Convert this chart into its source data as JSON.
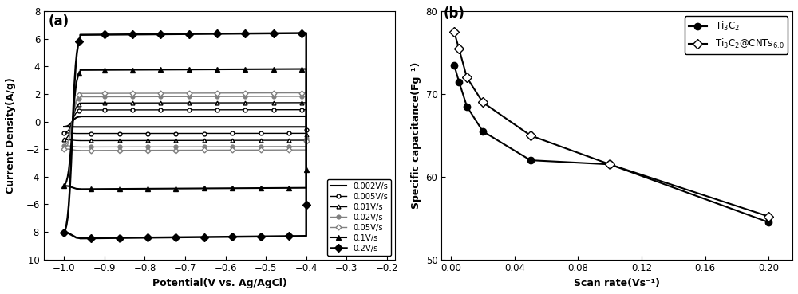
{
  "panel_a": {
    "xlabel": "Potential(V vs. Ag/AgCl)",
    "ylabel": "Current Density(A/g)",
    "xlim": [
      -1.05,
      -0.18
    ],
    "ylim": [
      -10,
      8
    ],
    "yticks": [
      -10,
      -8,
      -6,
      -4,
      -2,
      0,
      2,
      4,
      6,
      8
    ],
    "xticks": [
      -1.0,
      -0.9,
      -0.8,
      -0.7,
      -0.6,
      -0.5,
      -0.4,
      -0.3,
      -0.2
    ],
    "label": "(a)",
    "cv_curves": [
      {
        "upper": 0.38,
        "lower": -0.38,
        "color": "black",
        "marker": "None",
        "ms": 0,
        "mfc": "black",
        "lw": 1.5,
        "label": "0.002V/s"
      },
      {
        "upper": 0.85,
        "lower": -0.85,
        "color": "black",
        "marker": "o",
        "ms": 3.5,
        "mfc": "white",
        "lw": 1.0,
        "label": "0.005V/s"
      },
      {
        "upper": 1.35,
        "lower": -1.35,
        "color": "black",
        "marker": "^",
        "ms": 3.5,
        "mfc": "white",
        "lw": 1.0,
        "label": "0.01V/s"
      },
      {
        "upper": 1.8,
        "lower": -1.8,
        "color": "gray",
        "marker": "o",
        "ms": 3.5,
        "mfc": "gray",
        "lw": 1.0,
        "label": "0.02V/s"
      },
      {
        "upper": 2.05,
        "lower": -2.05,
        "color": "gray",
        "marker": "D",
        "ms": 3.5,
        "mfc": "white",
        "lw": 1.0,
        "label": "0.05V/s"
      },
      {
        "upper": 3.75,
        "lower": -4.8,
        "color": "black",
        "marker": "^",
        "ms": 5,
        "mfc": "black",
        "lw": 1.5,
        "label": "0.1V/s"
      },
      {
        "upper": 6.3,
        "lower": -8.3,
        "color": "black",
        "marker": "D",
        "ms": 5,
        "mfc": "black",
        "lw": 1.8,
        "label": "0.2V/s"
      }
    ]
  },
  "panel_b": {
    "xlabel": "Scan rate(Vs⁻¹)",
    "ylabel": "Specific capacitance(Fg⁻¹)",
    "xlim": [
      -0.006,
      0.215
    ],
    "ylim": [
      50,
      80
    ],
    "yticks": [
      50,
      60,
      70,
      80
    ],
    "xticks": [
      0.0,
      0.04,
      0.08,
      0.12,
      0.16,
      0.2
    ],
    "xticklabels": [
      "0.00",
      "0.04",
      "0.08",
      "0.12",
      "0.16",
      "0.20"
    ],
    "label": "(b)",
    "series": [
      {
        "label": "Ti$_3$C$_2$",
        "marker": "o",
        "markerfacecolor": "black",
        "color": "black",
        "linewidth": 1.5,
        "markersize": 6,
        "x": [
          0.002,
          0.005,
          0.01,
          0.02,
          0.05,
          0.1,
          0.2
        ],
        "y": [
          73.5,
          71.5,
          68.5,
          65.5,
          62.0,
          61.5,
          54.5
        ]
      },
      {
        "label": "Ti$_3$C$_2$@CNTs$_{6.0}$",
        "marker": "D",
        "markerfacecolor": "white",
        "color": "black",
        "linewidth": 1.5,
        "markersize": 6,
        "x": [
          0.002,
          0.005,
          0.01,
          0.02,
          0.05,
          0.1,
          0.2
        ],
        "y": [
          77.5,
          75.5,
          72.0,
          69.0,
          65.0,
          61.5,
          55.2
        ]
      }
    ]
  }
}
